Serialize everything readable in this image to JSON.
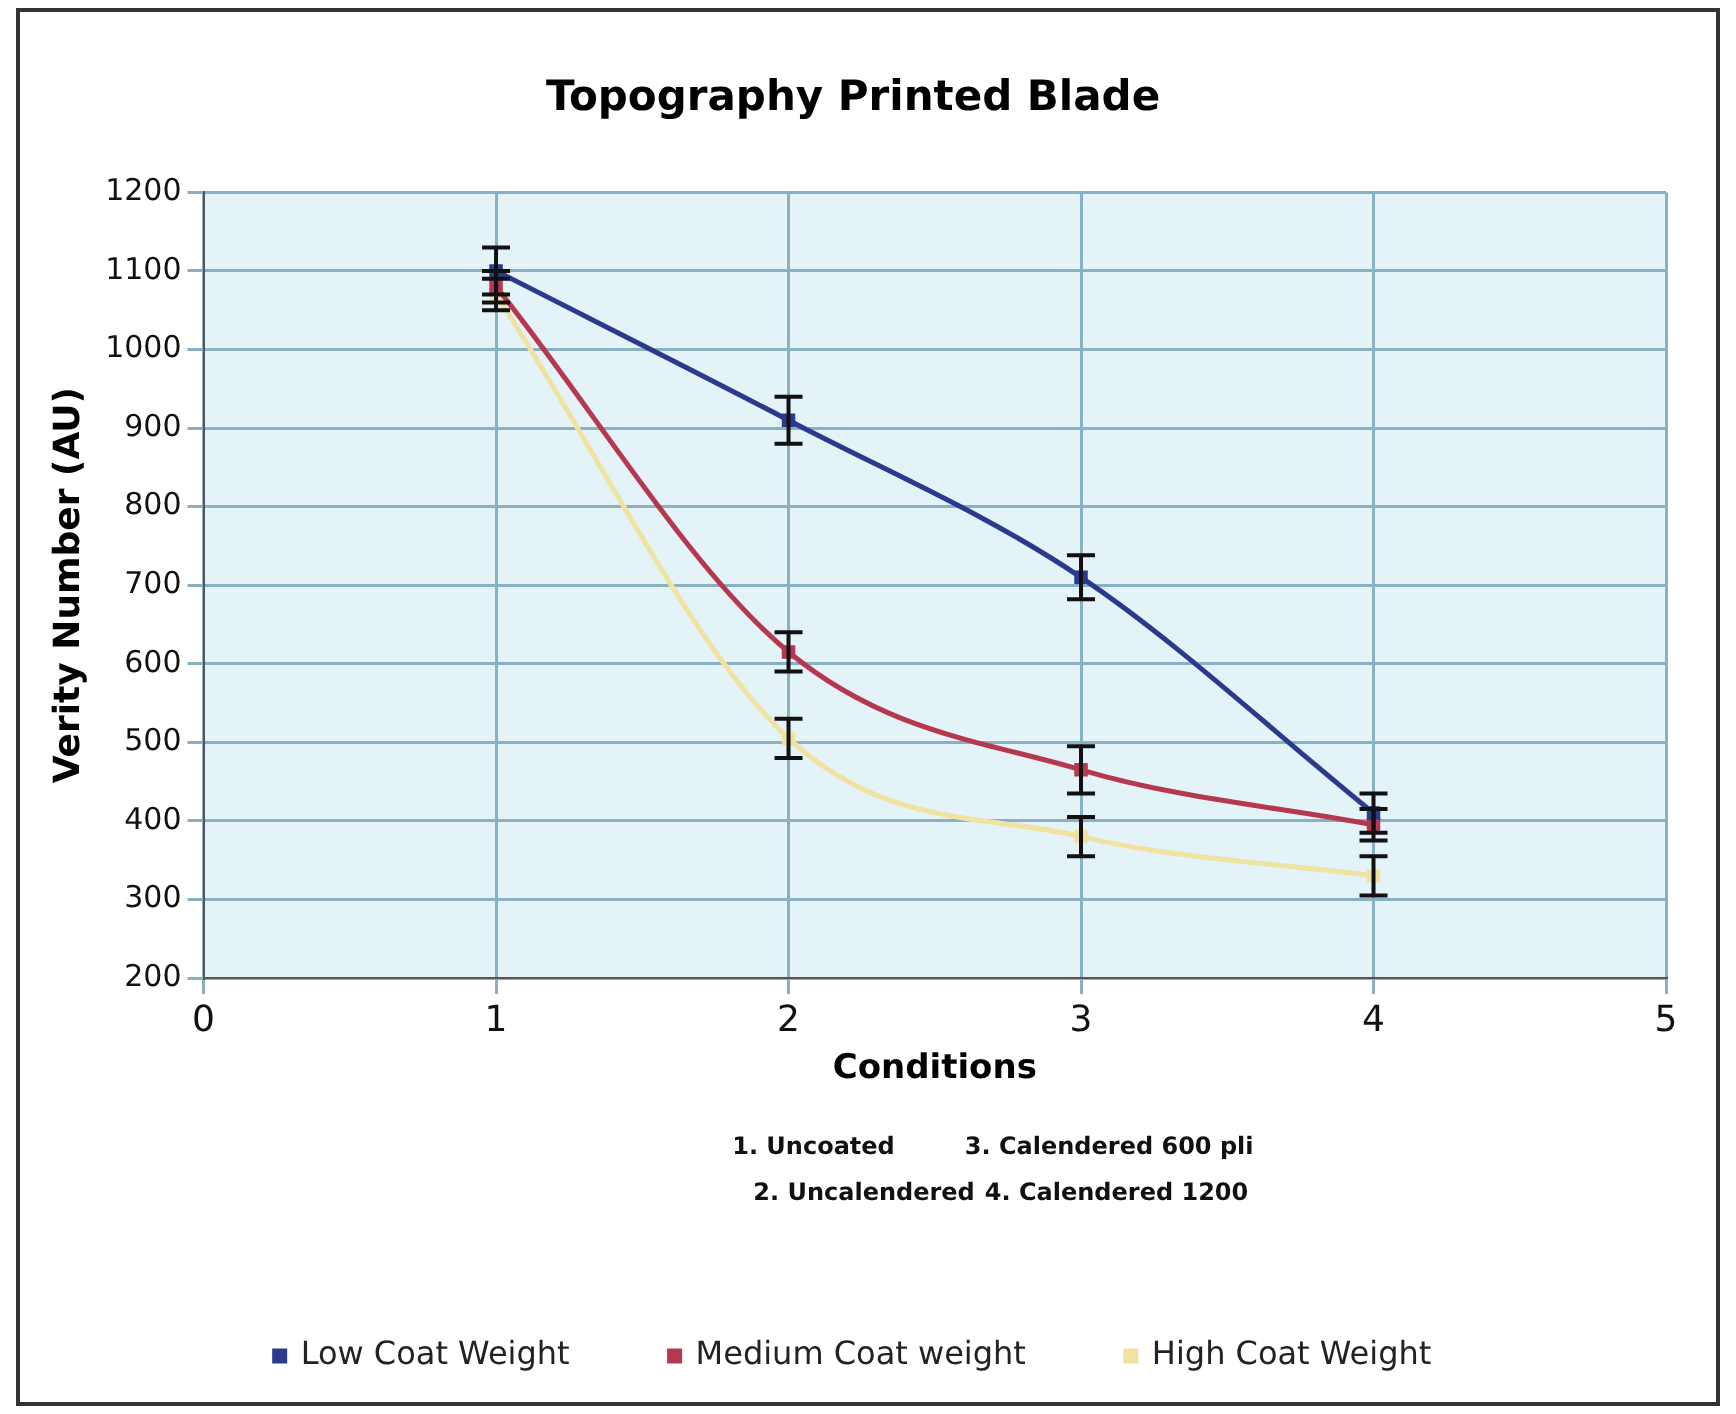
{
  "chart_data": {
    "type": "line",
    "title": "Topography Printed Blade",
    "xlabel": "Conditions",
    "ylabel": "Verity Number (AU)",
    "x": [
      1,
      2,
      3,
      4
    ],
    "series": [
      {
        "name": "Low Coat Weight",
        "color": "#2b3a8c",
        "values": [
          1100,
          910,
          710,
          410
        ],
        "errors": [
          30,
          30,
          28,
          25
        ]
      },
      {
        "name": "Medium Coat weight",
        "color": "#b5384f",
        "values": [
          1080,
          615,
          465,
          395
        ],
        "errors": [
          20,
          25,
          30,
          20
        ]
      },
      {
        "name": "High Coat Weight",
        "color": "#f0e2a0",
        "values": [
          1070,
          505,
          380,
          330
        ],
        "errors": [
          20,
          25,
          25,
          25
        ]
      }
    ],
    "xlim": [
      0,
      5
    ],
    "xticks": [
      0,
      1,
      2,
      3,
      4,
      5
    ],
    "ylim": [
      200,
      1200
    ],
    "yticks": [
      200,
      300,
      400,
      500,
      600,
      700,
      800,
      900,
      1000,
      1100,
      1200
    ],
    "grid": true,
    "legend": "bottom",
    "marker": "square",
    "line_style": "solid",
    "annotations": [
      "1. Uncoated",
      "3. Calendered 600 pli",
      "2. Uncalendered",
      "4. Calendered 1200"
    ]
  }
}
